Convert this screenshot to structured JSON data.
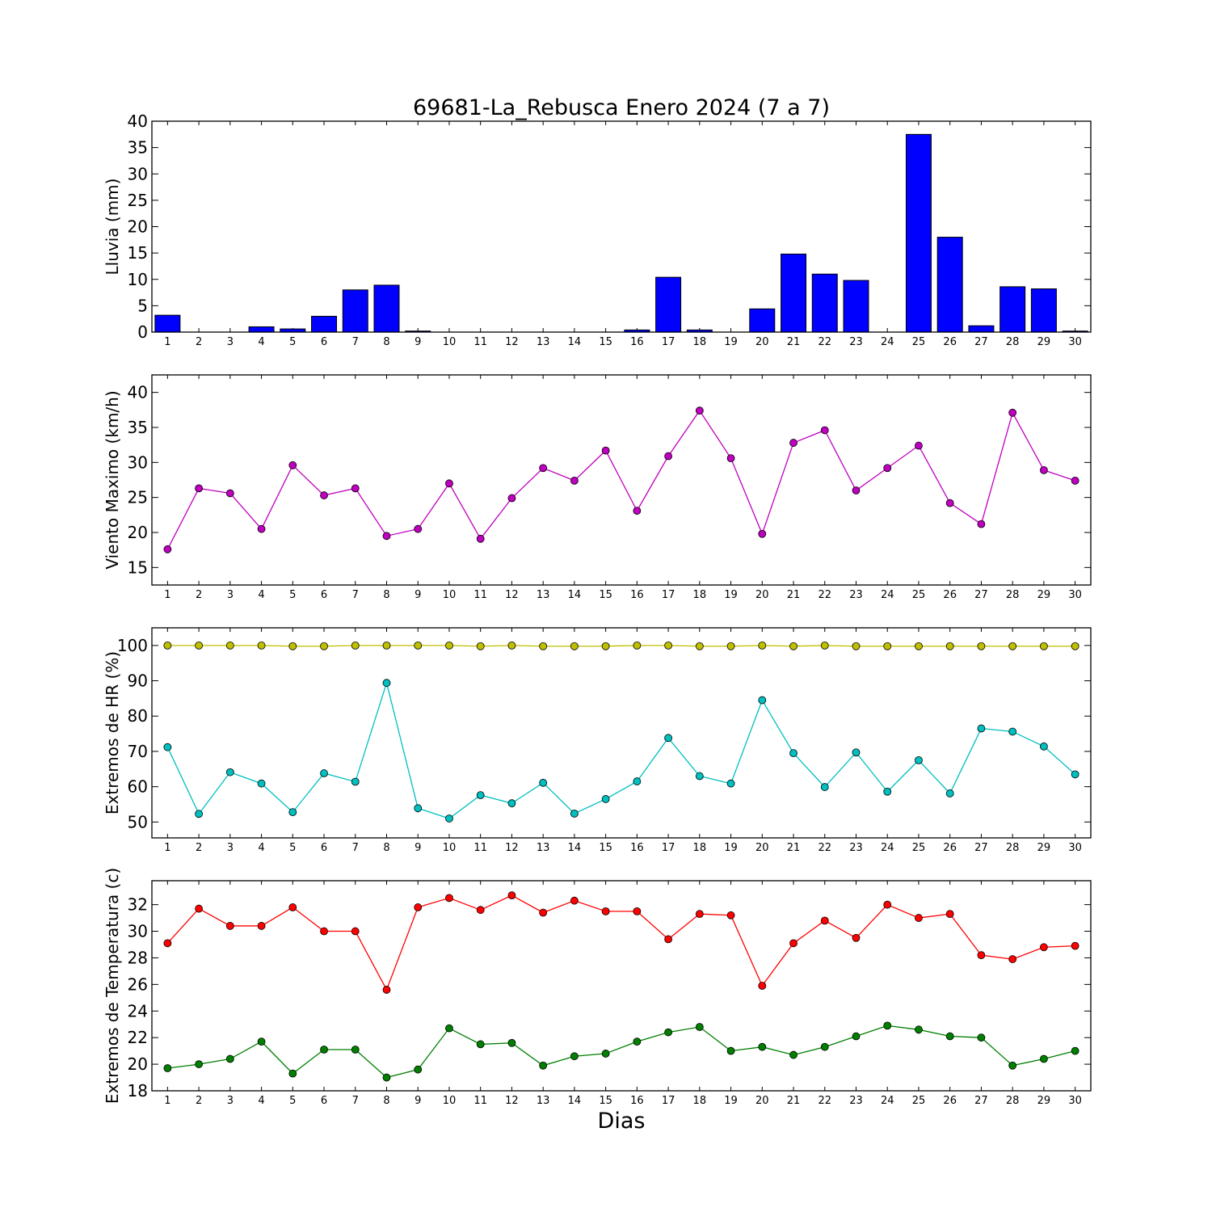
{
  "title": "69681-La_Rebusca Enero 2024  (7 a 7)",
  "xlabel": "Dias",
  "colors": {
    "rain": "#0000ff",
    "wind": "#bf00bf",
    "hr_max": "#bfbf00",
    "hr_min": "#00bfbf",
    "temp_max": "#ff0000",
    "temp_min": "#007f00"
  },
  "chart_data": [
    {
      "type": "bar",
      "ylabel": "Lluvia (mm)",
      "x": [
        1,
        2,
        3,
        4,
        5,
        6,
        7,
        8,
        9,
        10,
        11,
        12,
        13,
        14,
        15,
        16,
        17,
        18,
        19,
        20,
        21,
        22,
        23,
        24,
        25,
        26,
        27,
        28,
        29,
        30
      ],
      "ylim": [
        0,
        40
      ],
      "yticks": [
        0,
        5,
        10,
        15,
        20,
        25,
        30,
        35,
        40
      ],
      "series": [
        {
          "values": [
            3.2,
            0,
            0,
            1.0,
            0.6,
            3.0,
            8.0,
            8.9,
            0.2,
            0,
            0,
            0,
            0,
            0,
            0,
            0.4,
            10.4,
            0.4,
            0,
            4.4,
            14.8,
            11.0,
            9.8,
            0,
            37.5,
            18.0,
            1.2,
            8.6,
            8.2,
            0.2
          ]
        }
      ]
    },
    {
      "type": "line",
      "ylabel": "Viento Maximo (km/h)",
      "x": [
        1,
        2,
        3,
        4,
        5,
        6,
        7,
        8,
        9,
        10,
        11,
        12,
        13,
        14,
        15,
        16,
        17,
        18,
        19,
        20,
        21,
        22,
        23,
        24,
        25,
        26,
        27,
        28,
        29,
        30
      ],
      "ylim": [
        12.5,
        42.5
      ],
      "yticks": [
        15,
        20,
        25,
        30,
        35,
        40
      ],
      "series": [
        {
          "values": [
            17.6,
            26.3,
            25.6,
            20.5,
            29.6,
            25.3,
            26.3,
            19.5,
            20.5,
            27.0,
            19.1,
            24.9,
            29.2,
            27.4,
            31.7,
            23.1,
            30.9,
            37.4,
            30.6,
            19.8,
            32.8,
            34.6,
            26.0,
            29.2,
            32.4,
            24.2,
            21.2,
            37.1,
            28.9,
            27.4
          ]
        }
      ]
    },
    {
      "type": "line",
      "ylabel": "Extremos de HR (%)",
      "x": [
        1,
        2,
        3,
        4,
        5,
        6,
        7,
        8,
        9,
        10,
        11,
        12,
        13,
        14,
        15,
        16,
        17,
        18,
        19,
        20,
        21,
        22,
        23,
        24,
        25,
        26,
        27,
        28,
        29,
        30
      ],
      "ylim": [
        45.5,
        105
      ],
      "yticks": [
        50,
        60,
        70,
        80,
        90,
        100
      ],
      "series": [
        {
          "values": [
            100,
            100,
            100,
            100,
            99.8,
            99.8,
            100,
            100,
            100,
            100,
            99.8,
            100,
            99.8,
            99.8,
            99.8,
            100,
            100,
            99.8,
            99.8,
            100,
            99.8,
            100,
            99.8,
            99.8,
            99.8,
            99.8,
            99.8,
            99.8,
            99.8,
            99.8
          ]
        },
        {
          "values": [
            71.2,
            52.3,
            64.1,
            60.9,
            52.8,
            63.8,
            61.4,
            89.4,
            53.9,
            51.0,
            57.6,
            55.3,
            61.1,
            52.4,
            56.5,
            61.5,
            73.8,
            63.0,
            60.9,
            84.5,
            69.5,
            59.9,
            69.7,
            58.6,
            67.5,
            58.1,
            76.5,
            75.6,
            71.4,
            63.5
          ]
        }
      ]
    },
    {
      "type": "line",
      "ylabel": "Extremos de Temperatura (c)",
      "x": [
        1,
        2,
        3,
        4,
        5,
        6,
        7,
        8,
        9,
        10,
        11,
        12,
        13,
        14,
        15,
        16,
        17,
        18,
        19,
        20,
        21,
        22,
        23,
        24,
        25,
        26,
        27,
        28,
        29,
        30
      ],
      "ylim": [
        18,
        33.8
      ],
      "yticks": [
        18,
        20,
        22,
        24,
        26,
        28,
        30,
        32
      ],
      "series": [
        {
          "values": [
            29.1,
            31.7,
            30.4,
            30.4,
            31.8,
            30.0,
            30.0,
            25.6,
            31.8,
            32.5,
            31.6,
            32.7,
            31.4,
            32.3,
            31.5,
            31.5,
            29.4,
            31.3,
            31.2,
            25.9,
            29.1,
            30.8,
            29.5,
            32.0,
            31.0,
            31.3,
            28.2,
            27.9,
            28.8,
            28.9
          ]
        },
        {
          "values": [
            19.7,
            20.0,
            20.4,
            21.7,
            19.3,
            21.1,
            21.1,
            19.0,
            19.6,
            22.7,
            21.5,
            21.6,
            19.9,
            20.6,
            20.8,
            21.7,
            22.4,
            22.8,
            21.0,
            21.3,
            20.7,
            21.3,
            22.1,
            22.9,
            22.6,
            22.1,
            22.0,
            19.9,
            20.4,
            21.0
          ]
        }
      ]
    }
  ]
}
